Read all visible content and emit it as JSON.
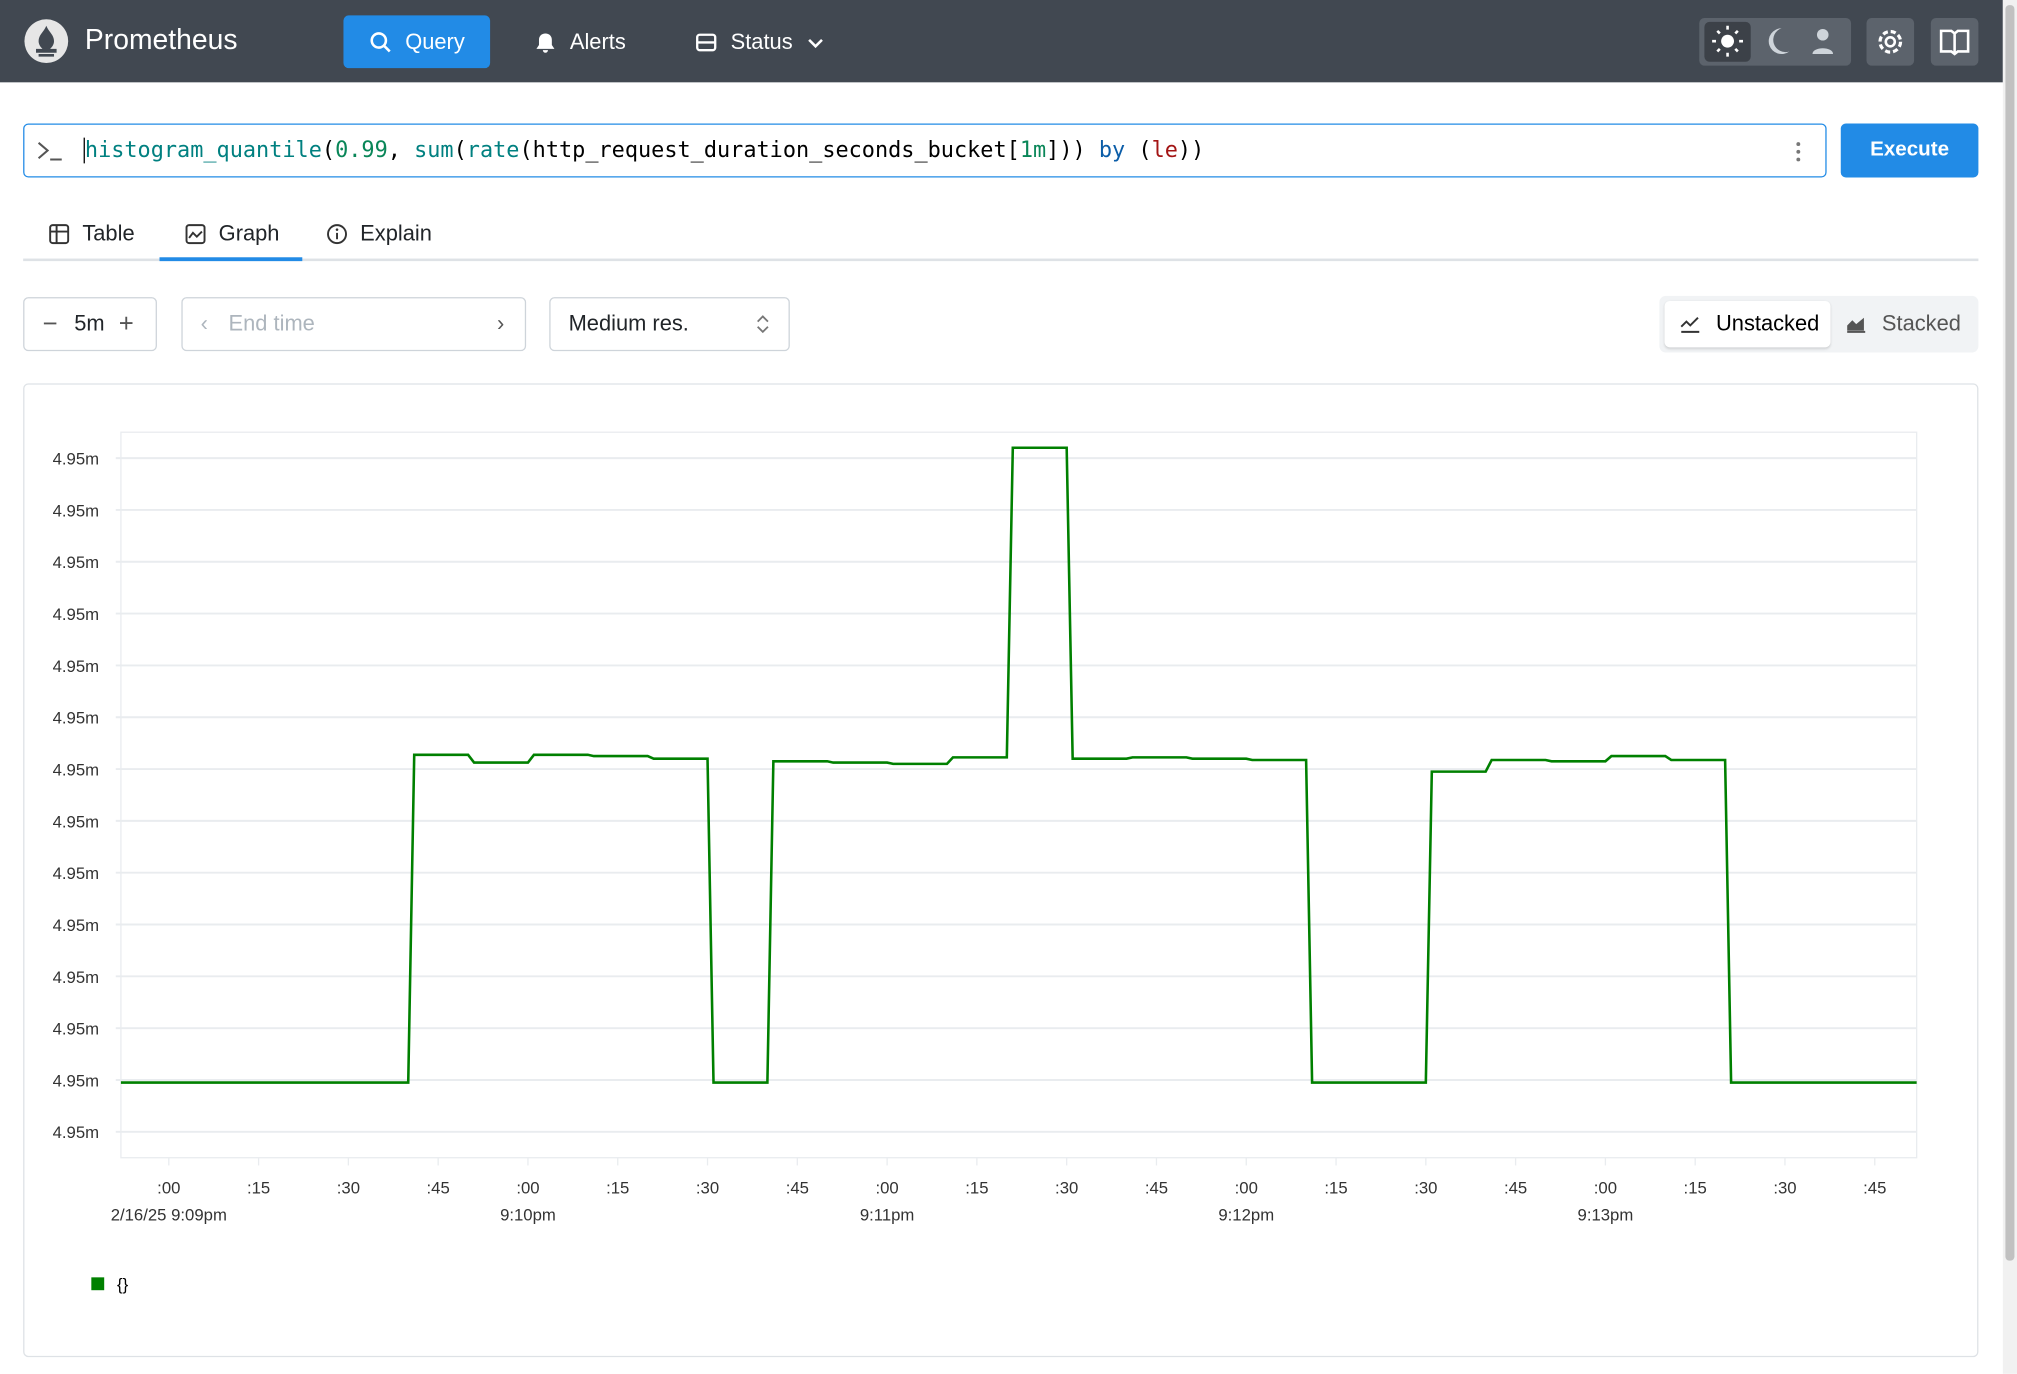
{
  "header": {
    "brand": "Prometheus",
    "nav": [
      "Query",
      "Alerts",
      "Status"
    ]
  },
  "query": {
    "tokens": [
      "histogram_quantile",
      "(",
      "0.99",
      ", ",
      "sum",
      "(",
      "rate",
      "(",
      "http_request_duration_seconds_bucket",
      "[",
      "1m",
      "])) ",
      "by",
      " (",
      "le",
      "))"
    ]
  },
  "execute": "Execute",
  "tabs": [
    "Table",
    "Graph",
    "Explain"
  ],
  "controls": {
    "range": "5m",
    "end_time": "End time",
    "resolution": "Medium res.",
    "stacking": [
      "Unstacked",
      "Stacked"
    ]
  },
  "chart_data": {
    "type": "line",
    "x": [
      "2025-02-16T21:08:52",
      "2025-02-16T21:09:40",
      "2025-02-16T21:09:41",
      "2025-02-16T21:09:50",
      "2025-02-16T21:09:51",
      "2025-02-16T21:10:00",
      "2025-02-16T21:10:01",
      "2025-02-16T21:10:10",
      "2025-02-16T21:10:11",
      "2025-02-16T21:10:20",
      "2025-02-16T21:10:21",
      "2025-02-16T21:10:30",
      "2025-02-16T21:10:31",
      "2025-02-16T21:10:40",
      "2025-02-16T21:10:41",
      "2025-02-16T21:10:50",
      "2025-02-16T21:10:51",
      "2025-02-16T21:11:00",
      "2025-02-16T21:11:01",
      "2025-02-16T21:11:10",
      "2025-02-16T21:11:11",
      "2025-02-16T21:11:20",
      "2025-02-16T21:11:21",
      "2025-02-16T21:11:30",
      "2025-02-16T21:11:31",
      "2025-02-16T21:11:40",
      "2025-02-16T21:11:41",
      "2025-02-16T21:11:50",
      "2025-02-16T21:11:51",
      "2025-02-16T21:12:00",
      "2025-02-16T21:12:01",
      "2025-02-16T21:12:10",
      "2025-02-16T21:12:11",
      "2025-02-16T21:12:30",
      "2025-02-16T21:12:31",
      "2025-02-16T21:12:40",
      "2025-02-16T21:12:41",
      "2025-02-16T21:12:50",
      "2025-02-16T21:12:51",
      "2025-02-16T21:13:00",
      "2025-02-16T21:13:01",
      "2025-02-16T21:13:10",
      "2025-02-16T21:13:11",
      "2025-02-16T21:13:20",
      "2025-02-16T21:13:21",
      "2025-02-16T21:13:52"
    ],
    "series": [
      {
        "name": "{}",
        "color": "#008000",
        "values": [
          0.00494798,
          0.00494798,
          0.00495051,
          0.00495051,
          0.00495045,
          0.00495045,
          0.00495051,
          0.00495051,
          0.0049505,
          0.0049505,
          0.00495048,
          0.00495048,
          0.00494798,
          0.00494798,
          0.00495046,
          0.00495046,
          0.00495045,
          0.00495045,
          0.00495044,
          0.00495044,
          0.00495049,
          0.00495049,
          0.00495288,
          0.00495288,
          0.00495048,
          0.00495048,
          0.00495049,
          0.00495049,
          0.00495048,
          0.00495048,
          0.00495047,
          0.00495047,
          0.00494798,
          0.00494798,
          0.00495038,
          0.00495038,
          0.00495047,
          0.00495047,
          0.00495046,
          0.00495046,
          0.0049505,
          0.0049505,
          0.00495047,
          0.00495047,
          0.00494798,
          0.00494798
        ]
      }
    ],
    "xlim": [
      "2025-02-16T21:08:52",
      "2025-02-16T21:13:52"
    ],
    "xticks": [
      {
        "value": "2025-02-16T21:09:00",
        "label": ":00"
      },
      {
        "value": "2025-02-16T21:09:15",
        "label": ":15"
      },
      {
        "value": "2025-02-16T21:09:30",
        "label": ":30"
      },
      {
        "value": "2025-02-16T21:09:45",
        "label": ":45"
      },
      {
        "value": "2025-02-16T21:10:00",
        "label": ":00"
      },
      {
        "value": "2025-02-16T21:10:15",
        "label": ":15"
      },
      {
        "value": "2025-02-16T21:10:30",
        "label": ":30"
      },
      {
        "value": "2025-02-16T21:10:45",
        "label": ":45"
      },
      {
        "value": "2025-02-16T21:11:00",
        "label": ":00"
      },
      {
        "value": "2025-02-16T21:11:15",
        "label": ":15"
      },
      {
        "value": "2025-02-16T21:11:30",
        "label": ":30"
      },
      {
        "value": "2025-02-16T21:11:45",
        "label": ":45"
      },
      {
        "value": "2025-02-16T21:12:00",
        "label": ":00"
      },
      {
        "value": "2025-02-16T21:12:15",
        "label": ":15"
      },
      {
        "value": "2025-02-16T21:12:30",
        "label": ":30"
      },
      {
        "value": "2025-02-16T21:12:45",
        "label": ":45"
      },
      {
        "value": "2025-02-16T21:13:00",
        "label": ":00"
      },
      {
        "value": "2025-02-16T21:13:15",
        "label": ":15"
      },
      {
        "value": "2025-02-16T21:13:30",
        "label": ":30"
      },
      {
        "value": "2025-02-16T21:13:45",
        "label": ":45"
      }
    ],
    "x_date_labels": [
      {
        "value": "2025-02-16T21:09:00",
        "label": "2/16/25 9:09pm"
      },
      {
        "value": "2025-02-16T21:10:00",
        "label": "9:10pm"
      },
      {
        "value": "2025-02-16T21:11:00",
        "label": "9:11pm"
      },
      {
        "value": "2025-02-16T21:12:00",
        "label": "9:12pm"
      },
      {
        "value": "2025-02-16T21:13:00",
        "label": "9:13pm"
      }
    ],
    "ylim": [
      0.0049474,
      0.004953
    ],
    "yticks": [
      {
        "value": 0.0049476,
        "label": "4.95m"
      },
      {
        "value": 0.004948,
        "label": "4.95m"
      },
      {
        "value": 0.0049484,
        "label": "4.95m"
      },
      {
        "value": 0.0049488,
        "label": "4.95m"
      },
      {
        "value": 0.0049492,
        "label": "4.95m"
      },
      {
        "value": 0.0049496,
        "label": "4.95m"
      },
      {
        "value": 0.00495,
        "label": "4.95m"
      },
      {
        "value": 0.0049504,
        "label": "4.95m"
      },
      {
        "value": 0.0049508,
        "label": "4.95m"
      },
      {
        "value": 0.0049512,
        "label": "4.95m"
      },
      {
        "value": 0.0049516,
        "label": "4.95m"
      },
      {
        "value": 0.004952,
        "label": "4.95m"
      },
      {
        "value": 0.0049524,
        "label": "4.95m"
      },
      {
        "value": 0.0049528,
        "label": "4.95m"
      }
    ],
    "grid": true
  }
}
